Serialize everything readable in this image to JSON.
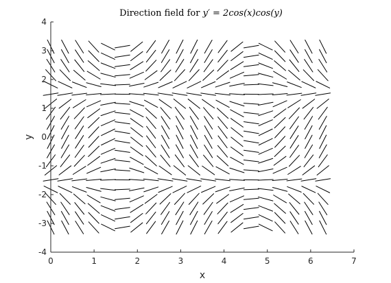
{
  "chart_data": {
    "type": "scatter",
    "plot_kind": "direction-field",
    "title_prefix": "Direction field for ",
    "title_math": "y′ = 2cos(x)cos(y)",
    "xlabel": "x",
    "ylabel": "y",
    "xlim": [
      0,
      7
    ],
    "ylim": [
      -4,
      4
    ],
    "xticks": [
      "0",
      "1",
      "2",
      "3",
      "4",
      "5",
      "6",
      "7"
    ],
    "yticks": [
      "-4",
      "-3",
      "-2",
      "-1",
      "0",
      "1",
      "2",
      "3",
      "4"
    ],
    "grid": false,
    "legend": "none",
    "equation": "2*cos(x)*cos(y)",
    "x_range": [
      0,
      6.2832
    ],
    "y_range": [
      -3.1416,
      3.1416
    ],
    "grid_points": 20,
    "line_color": "#000000"
  }
}
